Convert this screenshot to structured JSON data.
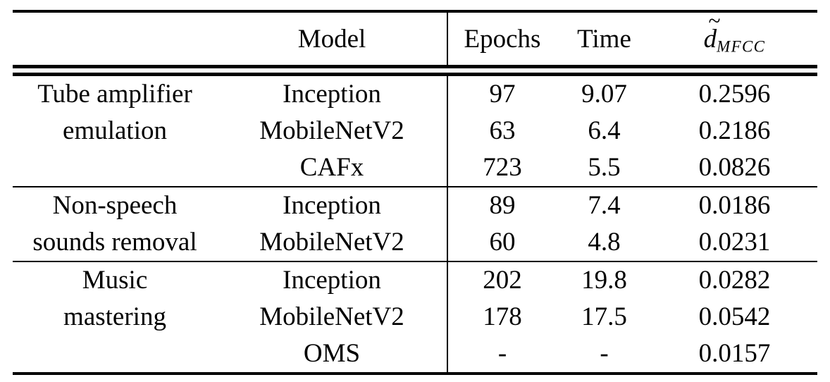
{
  "page": {
    "background": "#ffffff",
    "text_color": "#000000"
  },
  "header": {
    "task": "",
    "model": "Model",
    "epochs": "Epochs",
    "time": "Time",
    "metric": {
      "tilde": "~",
      "base": "d",
      "sub": "MFCC"
    }
  },
  "groups": [
    {
      "task_line1": "Tube amplifier",
      "task_line2": "emulation",
      "rows": [
        {
          "model": "Inception",
          "epochs": "97",
          "time": "9.07",
          "dmfcc": "0.2596"
        },
        {
          "model": "MobileNetV2",
          "epochs": "63",
          "time": "6.4",
          "dmfcc": "0.2186"
        },
        {
          "model": "CAFx",
          "epochs": "723",
          "time": "5.5",
          "dmfcc": "0.0826"
        }
      ]
    },
    {
      "task_line1": "Non-speech",
      "task_line2": "sounds removal",
      "rows": [
        {
          "model": "Inception",
          "epochs": "89",
          "time": "7.4",
          "dmfcc": "0.0186"
        },
        {
          "model": "MobileNetV2",
          "epochs": "60",
          "time": "4.8",
          "dmfcc": "0.0231"
        }
      ]
    },
    {
      "task_line1": "Music",
      "task_line2": "mastering",
      "rows": [
        {
          "model": "Inception",
          "epochs": "202",
          "time": "19.8",
          "dmfcc": "0.0282"
        },
        {
          "model": "MobileNetV2",
          "epochs": "178",
          "time": "17.5",
          "dmfcc": "0.0542"
        },
        {
          "model": "OMS",
          "epochs": "-",
          "time": "-",
          "dmfcc": "0.0157"
        }
      ]
    }
  ]
}
